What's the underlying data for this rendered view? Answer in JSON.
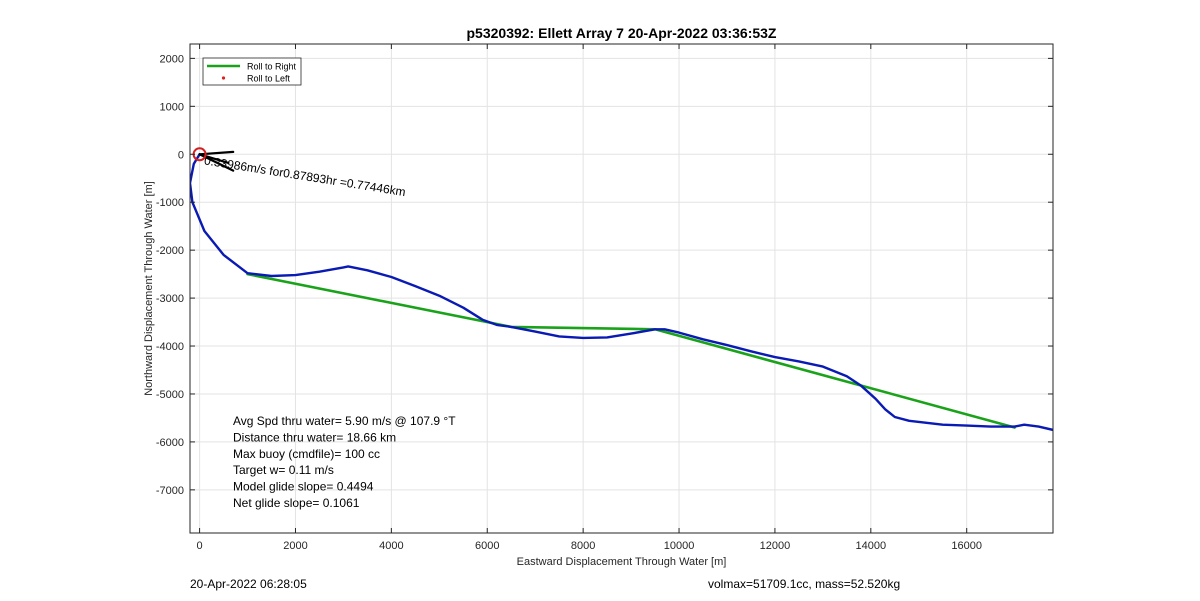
{
  "chart_data": {
    "type": "line",
    "title": "p5320392: Ellett Array 7 20-Apr-2022 03:36:53Z",
    "xlabel": "Eastward Displacement Through Water [m]",
    "ylabel": "Northward Displacement Through Water [m]",
    "xlim": [
      -200,
      17800
    ],
    "ylim": [
      -7900,
      2300
    ],
    "x_ticks": [
      0,
      2000,
      4000,
      6000,
      8000,
      10000,
      12000,
      14000,
      16000
    ],
    "x_tick_labels": [
      "0",
      "2000",
      "4000",
      "6000",
      "8000",
      "10000",
      "12000",
      "14000",
      "16000"
    ],
    "y_ticks": [
      2000,
      1000,
      0,
      -1000,
      -2000,
      -3000,
      -4000,
      -5000,
      -6000,
      -7000
    ],
    "y_tick_labels": [
      "2000",
      "1000",
      "0",
      "-1000",
      "-2000",
      "-3000",
      "-4000",
      "-5000",
      "-6000",
      "-7000"
    ],
    "grid": true,
    "legend": {
      "location": "top-left",
      "entries": [
        {
          "label": "Roll to Right",
          "color": "#1aa31a",
          "style": "line"
        },
        {
          "label": "Roll to Left",
          "color": "#e02020",
          "style": "dot"
        }
      ]
    },
    "series": [
      {
        "name": "Roll to Right",
        "color": "#1aa31a",
        "x": [
          1000,
          6500,
          9500,
          17000
        ],
        "y": [
          -2500,
          -3600,
          -3650,
          -5700
        ]
      },
      {
        "color": "#0a1ab4",
        "x": [
          0,
          -120,
          -200,
          -150,
          100,
          500,
          1000,
          1500,
          2000,
          2500,
          3000,
          3100,
          3500,
          4000,
          4500,
          5000,
          5500,
          5900,
          6200,
          6500,
          7000,
          7500,
          8000,
          8500,
          9000,
          9500,
          9700,
          10000,
          10500,
          11000,
          11500,
          12000,
          12500,
          13000,
          13500,
          13800,
          14100,
          14300,
          14500,
          14800,
          15500,
          16000,
          16500,
          17000,
          17200,
          17500,
          17800
        ],
        "y": [
          0,
          -200,
          -600,
          -1000,
          -1600,
          -2100,
          -2480,
          -2540,
          -2520,
          -2450,
          -2360,
          -2340,
          -2420,
          -2560,
          -2750,
          -2950,
          -3200,
          -3450,
          -3560,
          -3600,
          -3700,
          -3800,
          -3830,
          -3820,
          -3740,
          -3650,
          -3650,
          -3720,
          -3860,
          -3980,
          -4110,
          -4230,
          -4320,
          -4430,
          -4630,
          -4830,
          -5100,
          -5320,
          -5480,
          -5560,
          -5640,
          -5660,
          -5680,
          -5680,
          -5640,
          -5680,
          -5750
        ]
      },
      {
        "color": "#000000",
        "x": [
          0,
          700
        ],
        "y": [
          0,
          50
        ]
      },
      {
        "color": "#000000",
        "x": [
          0,
          600
        ],
        "y": [
          0,
          -180
        ]
      },
      {
        "color": "#000000",
        "x": [
          0,
          700
        ],
        "y": [
          0,
          -340
        ]
      }
    ],
    "surface_marker": {
      "x": 0,
      "y": 0,
      "color": "#d42020",
      "shape": "circle"
    },
    "annotations": [
      {
        "text": "0.33986m/s for0.87893hr =0.77446km",
        "x": 0,
        "y": 0,
        "rotation_deg": 9
      }
    ],
    "stats_text": [
      "Avg Spd thru water=  5.90 m/s @ 107.9 °T",
      "Distance thru water= 18.66 km",
      "Max buoy (cmdfile)= 100 cc",
      "Target w= 0.11 m/s",
      "Model glide slope= 0.4494",
      "Net glide slope= 0.1061"
    ]
  },
  "footer": {
    "left": "20-Apr-2022 06:28:05",
    "right": "volmax=51709.1cc, mass=52.520kg"
  }
}
